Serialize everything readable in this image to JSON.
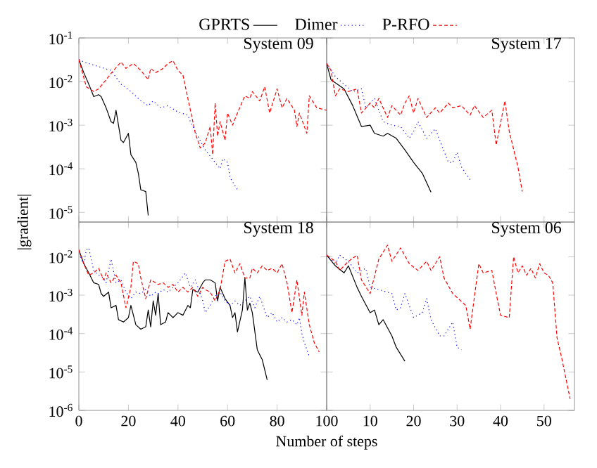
{
  "chart_data": [
    {
      "type": "line",
      "title": "System 09",
      "ylabel": "|gradient|",
      "log": true,
      "legend": "top",
      "tick_labels": "y",
      "xlim": [
        0,
        100
      ],
      "xticks": [
        0,
        20,
        40,
        60,
        80,
        100
      ],
      "ylim": [
        6e-06,
        0.1
      ],
      "yticks": [
        {
          "value": 0.1,
          "label": "10$^{-1}$"
        },
        {
          "value": 0.01,
          "label": "10$^{-2}$"
        },
        {
          "value": 0.001,
          "label": "10$^{-3}$"
        },
        {
          "value": 0.0001,
          "label": "10$^{-4}$"
        },
        {
          "value": 1e-05,
          "label": "10$^{-5}$"
        }
      ],
      "series": [
        {
          "name": "GPRTS",
          "color": "#000000",
          "line_style": "solid",
          "x": [
            0,
            2,
            4,
            5,
            6,
            8,
            9,
            11,
            13,
            14,
            15,
            17,
            18,
            20,
            21,
            23,
            24,
            25,
            27,
            28
          ],
          "values": [
            0.032,
            0.016,
            0.0087,
            0.0063,
            0.0045,
            0.005,
            0.0045,
            0.0025,
            0.0012,
            0.0011,
            0.0022,
            0.00045,
            0.0004,
            0.00065,
            0.00021,
            0.00014,
            7.9e-05,
            3.3e-05,
            3e-05,
            8.5e-06
          ]
        },
        {
          "name": "Dimer",
          "color": "#0000ff",
          "line_style": "dotted",
          "x": [
            0,
            2,
            13,
            17,
            21,
            25,
            28,
            30,
            33,
            36,
            40,
            44,
            45,
            48,
            51,
            55,
            57,
            58,
            60,
            61,
            64
          ],
          "values": [
            0.032,
            0.028,
            0.018,
            0.0087,
            0.0059,
            0.0036,
            0.0028,
            0.0036,
            0.0025,
            0.0028,
            0.002,
            0.0017,
            0.0012,
            0.00056,
            0.00027,
            0.00014,
            0.0001,
            0.00017,
            0.00014,
            6.3e-05,
            3.3e-05
          ]
        },
        {
          "name": "P-RFO",
          "color": "#ff0000",
          "line_style": "dashed",
          "x": [
            0,
            3,
            6,
            8,
            11,
            14,
            17,
            19,
            22,
            25,
            28,
            29,
            31,
            34,
            36,
            38,
            40,
            42,
            44,
            46,
            47,
            49,
            51,
            53,
            54,
            55,
            56,
            57,
            59,
            60,
            62,
            64,
            67,
            69,
            70,
            73,
            75,
            77,
            80,
            82,
            84,
            87,
            88,
            89,
            92,
            93,
            96,
            100
          ],
          "values": [
            0.032,
            0.0076,
            0.0059,
            0.0068,
            0.011,
            0.018,
            0.028,
            0.02,
            0.026,
            0.018,
            0.011,
            0.02,
            0.016,
            0.02,
            0.026,
            0.03,
            0.018,
            0.014,
            0.0041,
            0.0012,
            0.00065,
            0.0003,
            0.00039,
            0.00093,
            0.00021,
            0.0032,
            0.00056,
            0.0012,
            0.00045,
            0.0019,
            0.001,
            0.0019,
            0.0047,
            0.0041,
            0.0059,
            0.0036,
            0.0076,
            0.0019,
            0.0068,
            0.0025,
            0.0041,
            0.0022,
            0.00093,
            0.0019,
            0.00065,
            0.0047,
            0.0025,
            0.0022
          ]
        }
      ]
    },
    {
      "type": "line",
      "title": "System 17",
      "log": true,
      "tick_labels": false,
      "xlim": [
        0,
        57
      ],
      "xticks": [
        0,
        10,
        20,
        30,
        40,
        50
      ],
      "ylim": [
        6e-06,
        0.1
      ],
      "yticks": [
        {
          "value": 0.1,
          "label": null
        },
        {
          "value": 0.01,
          "label": null
        },
        {
          "value": 0.001,
          "label": null
        },
        {
          "value": 0.0001,
          "label": null
        },
        {
          "value": 1e-05,
          "label": null
        }
      ],
      "series": [
        {
          "color": "#000000",
          "line_style": "solid",
          "x": [
            0,
            1,
            4,
            6,
            8,
            10,
            11,
            13,
            14,
            16,
            18,
            20,
            22,
            23,
            24
          ],
          "values": [
            0.026,
            0.011,
            0.0068,
            0.0028,
            0.00093,
            0.001,
            0.00065,
            0.00056,
            0.00065,
            0.0005,
            0.00027,
            0.00014,
            7.9e-05,
            4.8e-05,
            2.9e-05
          ]
        },
        {
          "color": "#0000ff",
          "line_style": "dotted",
          "x": [
            0,
            2,
            4,
            6,
            8,
            9,
            11,
            13,
            15,
            17,
            19,
            20,
            21,
            23,
            25,
            26,
            28,
            29,
            30,
            31,
            33
          ],
          "values": [
            0.026,
            0.013,
            0.0087,
            0.0059,
            0.0068,
            0.0025,
            0.0041,
            0.0012,
            0.001,
            0.00093,
            0.0005,
            0.00072,
            0.0012,
            0.0005,
            0.00083,
            0.00045,
            0.00014,
            0.00014,
            0.00024,
            0.00011,
            5.6e-05
          ]
        },
        {
          "color": "#ff0000",
          "line_style": "dashed",
          "x": [
            0,
            1,
            2,
            3,
            5,
            7,
            8,
            10,
            11,
            12,
            14,
            15,
            17,
            18,
            19,
            20,
            21,
            23,
            25,
            26,
            28,
            29,
            31,
            33,
            34,
            36,
            38,
            39,
            41,
            42,
            44,
            45
          ],
          "values": [
            0.026,
            0.018,
            0.0047,
            0.0068,
            0.0059,
            0.0068,
            0.0019,
            0.0032,
            0.0025,
            0.0041,
            0.0015,
            0.0028,
            0.0017,
            0.0032,
            0.0047,
            0.0019,
            0.0041,
            0.0015,
            0.0025,
            0.0019,
            0.0032,
            0.0025,
            0.0028,
            0.0017,
            0.0028,
            0.0015,
            0.0022,
            0.00035,
            0.0036,
            0.00072,
            0.00011,
            3e-05
          ]
        }
      ]
    },
    {
      "type": "line",
      "title": "System 18",
      "xlabel": "Number of steps",
      "log": true,
      "xlim": [
        0,
        100
      ],
      "xticks": [
        0,
        20,
        40,
        60,
        80,
        100
      ],
      "ylim": [
        1e-06,
        0.08
      ],
      "yticks": [
        {
          "value": 0.01,
          "label": "10$^{-2}$"
        },
        {
          "value": 0.001,
          "label": "10$^{-3}$"
        },
        {
          "value": 0.0001,
          "label": "10$^{-4}$"
        },
        {
          "value": 1e-05,
          "label": "10$^{-5}$"
        },
        {
          "value": 1e-06,
          "label": "10$^{-6}$"
        }
      ],
      "series": [
        {
          "color": "#000000",
          "line_style": "solid",
          "x": [
            0,
            2,
            4,
            6,
            8,
            9,
            10,
            12,
            13,
            15,
            16,
            18,
            20,
            21,
            23,
            25,
            27,
            28,
            29,
            30,
            31,
            32,
            33,
            35,
            36,
            38,
            40,
            42,
            44,
            45,
            46,
            48,
            50,
            51,
            53,
            55,
            56,
            57,
            59,
            61,
            62,
            63,
            64,
            66,
            67,
            68,
            69,
            70,
            72,
            73,
            74,
            76
          ],
          "values": [
            0.015,
            0.0066,
            0.0038,
            0.0021,
            0.0019,
            0.0011,
            0.00093,
            0.0012,
            0.00047,
            0.00054,
            0.00023,
            0.0002,
            0.00026,
            0.00054,
            0.00017,
            0.00013,
            0.00015,
            0.00041,
            0.00015,
            0.00071,
            0.0003,
            0.0011,
            0.00017,
            0.0002,
            0.00035,
            0.00026,
            0.00035,
            0.0003,
            0.00054,
            0.00047,
            0.0014,
            0.0012,
            0.0021,
            0.0025,
            0.0025,
            0.0021,
            0.00071,
            0.0016,
            0.00081,
            0.00054,
            0.00026,
            0.00035,
            0.00011,
            0.00041,
            0.0028,
            0.00041,
            0.00062,
            0.00035,
            3.8e-05,
            2.8e-05,
            2.1e-05,
            6.2e-06
          ]
        },
        {
          "color": "#0000ff",
          "line_style": "dotted",
          "x": [
            0,
            1,
            2,
            3,
            4,
            6,
            8,
            10,
            11,
            13,
            15,
            17,
            19,
            21,
            23,
            25,
            27,
            29,
            31,
            32,
            34,
            36,
            40,
            43,
            45,
            47,
            50,
            51,
            53,
            55,
            57,
            59,
            61,
            63,
            65,
            67,
            69,
            71,
            73,
            76,
            78,
            80,
            82,
            84,
            86,
            88,
            89,
            90,
            91,
            93
          ],
          "values": [
            0.015,
            0.0087,
            0.0066,
            0.015,
            0.017,
            0.0044,
            0.0033,
            0.0028,
            0.0021,
            0.0087,
            0.0021,
            0.0025,
            0.0012,
            0.00081,
            0.0012,
            0.0011,
            0.0014,
            0.00093,
            0.0012,
            0.0011,
            0.0014,
            0.0012,
            0.0021,
            0.0038,
            0.0016,
            0.0025,
            0.00071,
            0.00035,
            0.00054,
            0.00093,
            0.0012,
            0.00071,
            0.00054,
            0.00071,
            0.00054,
            0.00071,
            0.00093,
            0.00047,
            0.00093,
            0.00026,
            0.00035,
            0.0002,
            0.00026,
            0.0002,
            0.00023,
            0.00017,
            0.00026,
            0.0001,
            5.8e-05,
            2.5e-05
          ]
        },
        {
          "color": "#ff0000",
          "line_style": "dashed",
          "x": [
            0,
            2,
            4,
            6,
            8,
            10,
            11,
            13,
            15,
            17,
            19,
            21,
            22,
            24,
            25,
            27,
            29,
            31,
            32,
            34,
            36,
            38,
            40,
            42,
            44,
            46,
            48,
            50,
            51,
            53,
            55,
            57,
            59,
            61,
            63,
            65,
            67,
            69,
            70,
            72,
            74,
            76,
            78,
            80,
            82,
            84,
            86,
            88,
            90,
            91,
            93,
            95,
            97
          ],
          "values": [
            0.015,
            0.0066,
            0.0033,
            0.0038,
            0.005,
            0.0025,
            0.0038,
            0.0021,
            0.0033,
            0.0021,
            0.00047,
            0.0016,
            0.0076,
            0.0066,
            0.0028,
            0.00081,
            0.0025,
            0.0021,
            0.0019,
            0.0021,
            0.0016,
            0.0019,
            0.0012,
            0.0016,
            0.0012,
            0.0016,
            0.00093,
            0.0016,
            0.0014,
            0.0012,
            0.00071,
            0.0014,
            0.0076,
            0.0087,
            0.0038,
            0.0066,
            0.0028,
            0.0028,
            0.005,
            0.0038,
            0.0058,
            0.0044,
            0.005,
            0.0038,
            0.0066,
            0.0021,
            0.00035,
            0.0025,
            0.0003,
            0.0012,
            0.00017,
            5.8e-05,
            3.3e-05
          ]
        }
      ]
    },
    {
      "type": "line",
      "title": "System 06",
      "log": true,
      "tick_labels": "x",
      "xlim": [
        0,
        57
      ],
      "xticks": [
        10,
        20,
        30,
        40,
        50
      ],
      "ylim": [
        1e-06,
        0.08
      ],
      "yticks": [
        {
          "value": 0.01,
          "label": null
        },
        {
          "value": 0.001,
          "label": null
        },
        {
          "value": 0.0001,
          "label": null
        },
        {
          "value": 1e-05,
          "label": null
        },
        {
          "value": 1e-06,
          "label": null
        }
      ],
      "series": [
        {
          "color": "#000000",
          "line_style": "solid",
          "x": [
            0,
            2,
            4,
            5,
            7,
            8,
            10,
            11,
            12,
            13,
            15,
            16,
            18
          ],
          "values": [
            0.011,
            0.0058,
            0.0038,
            0.0058,
            0.0016,
            0.00093,
            0.00035,
            0.00041,
            0.00017,
            0.00023,
            8.7e-05,
            4.4e-05,
            1.9e-05
          ]
        },
        {
          "color": "#0000ff",
          "line_style": "dotted",
          "x": [
            0,
            2,
            3,
            5,
            7,
            9,
            10,
            12,
            15,
            16,
            17,
            18,
            20,
            22,
            23,
            24,
            26,
            27,
            29,
            30,
            31
          ],
          "values": [
            0.011,
            0.0066,
            0.011,
            0.0076,
            0.0038,
            0.005,
            0.0016,
            0.0014,
            0.0011,
            0.00041,
            0.00047,
            0.0011,
            0.00026,
            0.00035,
            0.00081,
            0.00023,
            8.7e-05,
            8.7e-05,
            0.0002,
            4.4e-05,
            3.8e-05
          ]
        },
        {
          "color": "#ff0000",
          "line_style": "dashed",
          "x": [
            0,
            2,
            3,
            5,
            7,
            8,
            10,
            12,
            14,
            15,
            17,
            19,
            21,
            23,
            24,
            26,
            27,
            29,
            32,
            33,
            35,
            36,
            38,
            39,
            40,
            42,
            43,
            44,
            45,
            46,
            47,
            48,
            49,
            50,
            51,
            52,
            53,
            54,
            56
          ],
          "values": [
            0.011,
            0.0076,
            0.0044,
            0.0076,
            0.011,
            0.0025,
            0.0011,
            0.0087,
            0.02,
            0.0076,
            0.017,
            0.0066,
            0.0044,
            0.0076,
            0.0044,
            0.01,
            0.0028,
            0.0011,
            0.00054,
            0.00013,
            0.0066,
            0.0038,
            0.0044,
            0.0011,
            0.0003,
            0.00026,
            0.01,
            0.0038,
            0.0058,
            0.0033,
            0.005,
            0.0028,
            0.0066,
            0.0038,
            0.0033,
            0.0021,
            7.6e-05,
            2.5e-05,
            2e-06
          ]
        }
      ]
    }
  ]
}
